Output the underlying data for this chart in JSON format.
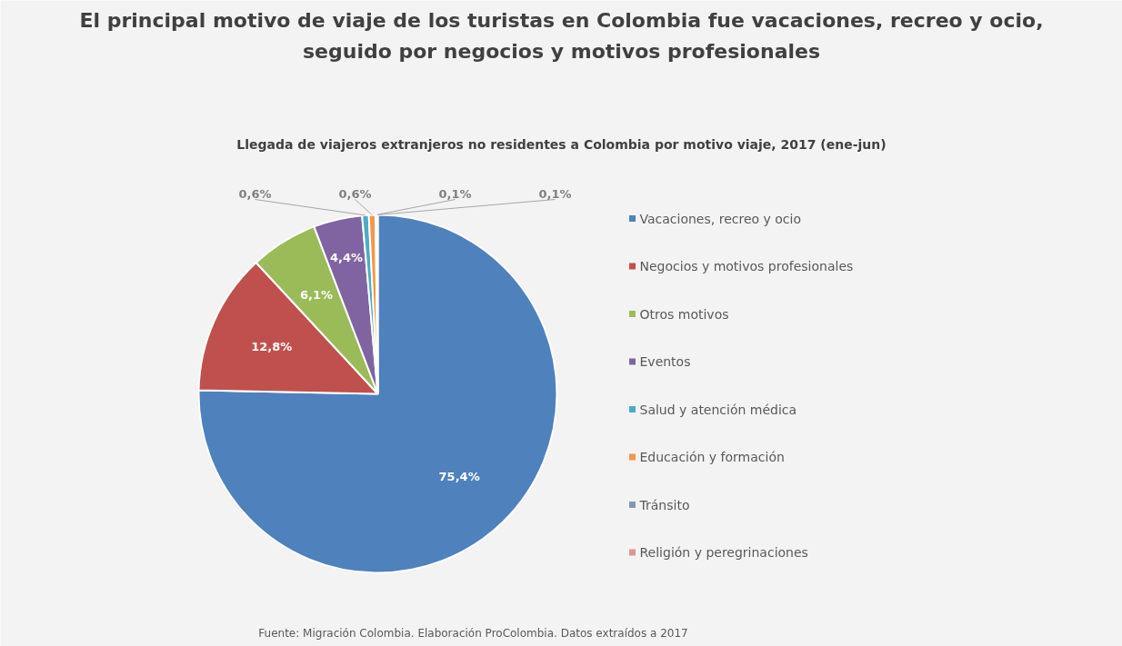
{
  "chart_data": {
    "type": "pie",
    "title": "El principal motivo de viaje de los turistas en Colombia fue vacaciones, recreo y ocio, seguido por negocios y motivos profesionales",
    "subtitle": "Llegada de viajeros extranjeros no residentes a Colombia por motivo viaje, 2017 (ene-jun)",
    "categories": [
      "Vacaciones, recreo y ocio",
      "Negocios y motivos profesionales",
      "Otros motivos",
      "Eventos",
      "Salud y atención médica",
      "Educación y formación",
      "Tránsito",
      "Religión y peregrinaciones"
    ],
    "values": [
      75.4,
      12.8,
      6.1,
      4.4,
      0.6,
      0.6,
      0.1,
      0.1
    ],
    "colors": [
      "#4f81bd",
      "#c0504d",
      "#9bbb59",
      "#8064a2",
      "#4bacc6",
      "#f79646",
      "#8497b0",
      "#d99694"
    ],
    "value_labels": [
      "75,4%",
      "12,8%",
      "6,1%",
      "4,4%",
      "0,6%",
      "0,6%",
      "0,1%",
      "0,1%"
    ],
    "legend": "right",
    "annotations": [
      "Fuente: Migración Colombia. Elaboración ProColombia. Datos extraídos a 2017"
    ]
  }
}
